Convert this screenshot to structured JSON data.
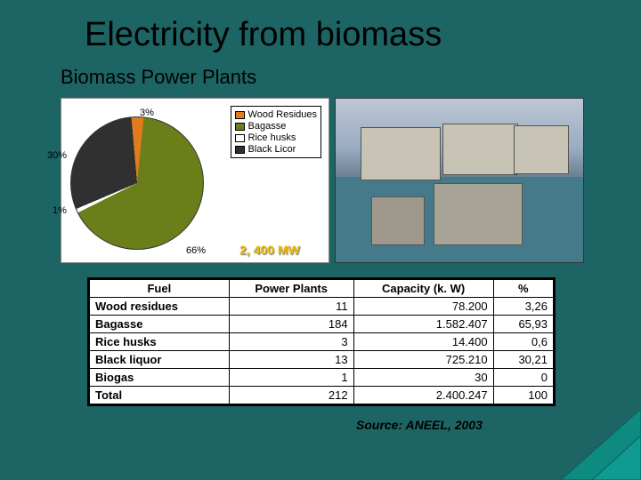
{
  "title": "Electricity from biomass",
  "subtitle": "Biomass Power Plants",
  "source": "Source: ANEEL, 2003",
  "capacity_badge": "2, 400 MW",
  "pie": {
    "type": "pie",
    "background_color": "#ffffff",
    "slices": [
      {
        "label": "Wood Residues",
        "value": 3,
        "pct_label": "3%",
        "color": "#e07b1e"
      },
      {
        "label": "Bagasse",
        "value": 66,
        "pct_label": "66%",
        "color": "#6a7f1a"
      },
      {
        "label": "Rice husks",
        "value": 1,
        "pct_label": "1%",
        "color": "#ffffff"
      },
      {
        "label": "Black Licor",
        "value": 30,
        "pct_label": "30%",
        "color": "#303030"
      }
    ],
    "legend_items": [
      {
        "label": "Wood Residues",
        "color": "#e07b1e"
      },
      {
        "label": "Bagasse",
        "color": "#6a7f1a"
      },
      {
        "label": "Rice husks",
        "color": "#ffffff"
      },
      {
        "label": "Black Licor",
        "color": "#303030"
      }
    ],
    "label_fontsize": 11
  },
  "table": {
    "columns": [
      "Fuel",
      "Power Plants",
      "Capacity (k. W)",
      "%"
    ],
    "rows": [
      [
        "Wood residues",
        "11",
        "78.200",
        "3,26"
      ],
      [
        "Bagasse",
        "184",
        "1.582.407",
        "65,93"
      ],
      [
        "Rice husks",
        "3",
        "14.400",
        "0,6"
      ],
      [
        "Black liquor",
        "13",
        "725.210",
        "30,21"
      ],
      [
        "Biogas",
        "1",
        "30",
        "0"
      ],
      [
        "Total",
        "212",
        "2.400.247",
        "100"
      ]
    ],
    "col_align": [
      "left",
      "right",
      "right",
      "right"
    ],
    "border_color": "#000000",
    "header_fontsize": 13,
    "cell_fontsize": 13
  },
  "accent_color": "#0d8b81"
}
